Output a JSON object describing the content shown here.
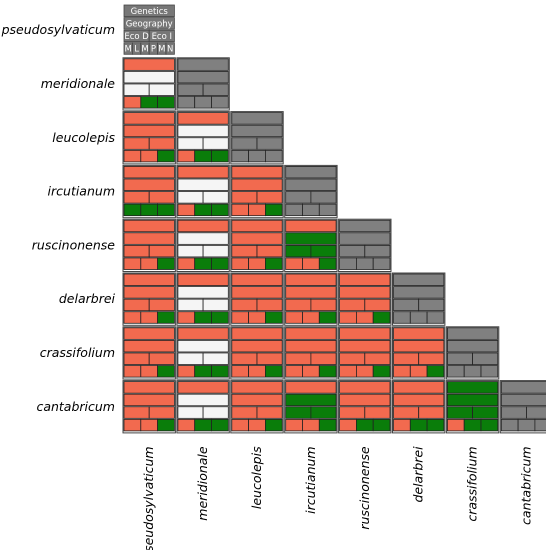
{
  "species": [
    "pseudosylvaticum",
    "meridionale",
    "leucolepis",
    "ircutianum",
    "ruscinonense",
    "delarbrei",
    "crassifolium",
    "cantabricum"
  ],
  "legend": {
    "row1": "Genetics",
    "row2": "Geography",
    "row3": [
      "Eco D",
      "Eco I"
    ],
    "row4": [
      "M",
      "L",
      "M",
      "P",
      "M",
      "N"
    ]
  },
  "colors": {
    "red": "#f26a4f",
    "white": "#f5f5f5",
    "green": "#0a7d0a",
    "gray": "#808080",
    "legend_gray": "#777777",
    "border": "#444444"
  },
  "cell_codes": {
    "1": [
      "R",
      "W",
      "W",
      "W",
      "R",
      "G",
      "G"
    ],
    "2": [
      "R",
      "R",
      "R",
      "R",
      "R",
      "R",
      "G"
    ],
    "3": [
      "R",
      "W",
      "W",
      "W",
      "R",
      "G",
      "G"
    ],
    "4": [
      "R",
      "R",
      "R",
      "R",
      "G",
      "G",
      "G"
    ],
    "5": [
      "R",
      "R",
      "R",
      "R",
      "R",
      "R",
      "G"
    ],
    "6": [
      "R",
      "W",
      "W",
      "W",
      "R",
      "G",
      "G"
    ],
    "7": [
      "R",
      "R",
      "R",
      "R",
      "R",
      "R",
      "G"
    ],
    "8": [
      "R",
      "R",
      "R",
      "R",
      "R",
      "R",
      "G"
    ],
    "9": [
      "R",
      "G",
      "G",
      "G",
      "R",
      "R",
      "G"
    ],
    "10": [
      "R",
      "R",
      "R",
      "R",
      "R",
      "R",
      "G"
    ],
    "11": [
      "R",
      "R",
      "R",
      "R",
      "R",
      "R",
      "G"
    ],
    "12": [
      "R",
      "R",
      "R",
      "R",
      "R",
      "R",
      "G"
    ],
    "13": [
      "R",
      "R",
      "R",
      "R",
      "R",
      "R",
      "G"
    ],
    "14": [
      "R",
      "R",
      "R",
      "R",
      "R",
      "R",
      "G"
    ],
    "15": [
      "R",
      "R",
      "R",
      "R",
      "R",
      "R",
      "G"
    ],
    "16": [
      "R",
      "R",
      "R",
      "R",
      "R",
      "R",
      "G"
    ],
    "17": [
      "R",
      "W",
      "W",
      "W",
      "R",
      "G",
      "G"
    ],
    "18": [
      "R",
      "R",
      "R",
      "R",
      "R",
      "R",
      "G"
    ],
    "19": [
      "R",
      "R",
      "R",
      "R",
      "R",
      "R",
      "G"
    ],
    "20": [
      "R",
      "R",
      "R",
      "R",
      "R",
      "R",
      "G"
    ],
    "21": [
      "R",
      "R",
      "R",
      "R",
      "R",
      "R",
      "G"
    ],
    "22": [
      "R",
      "R",
      "R",
      "R",
      "R",
      "R",
      "G"
    ],
    "23": [
      "R",
      "R",
      "R",
      "R",
      "R",
      "G",
      "G"
    ],
    "24": [
      "R",
      "R",
      "R",
      "R",
      "R",
      "G",
      "G"
    ],
    "25": [
      "R",
      "R",
      "R",
      "R",
      "R",
      "R",
      "G"
    ],
    "26": [
      "R",
      "R",
      "R",
      "R",
      "R",
      "R",
      "G"
    ],
    "27": [
      "R",
      "R",
      "R",
      "R",
      "R",
      "R",
      "G"
    ],
    "28": [
      "R",
      "R",
      "R",
      "R",
      "R",
      "R",
      "G"
    ],
    "29": [
      "R",
      "R",
      "R",
      "R",
      "R",
      "R",
      "G"
    ],
    "30": [
      "R",
      "R",
      "R",
      "R",
      "G",
      "G",
      "G"
    ],
    "31": [
      "R",
      "R",
      "R",
      "R",
      "R",
      "R",
      "G"
    ],
    "32": [
      "R",
      "R",
      "R",
      "R",
      "R",
      "R",
      "G"
    ],
    "33": [
      "R",
      "R",
      "R",
      "R",
      "R",
      "G",
      "G"
    ],
    "34": [
      "R",
      "G",
      "G",
      "G",
      "R",
      "R",
      "G"
    ],
    "35": [
      "G",
      "G",
      "G",
      "G",
      "R",
      "G",
      "G"
    ]
  },
  "matrix": [
    [],
    [
      "1"
    ],
    [
      "2",
      "3"
    ],
    [
      "4",
      "6",
      "5"
    ],
    [
      "7",
      "6",
      "8",
      "9"
    ],
    [
      "10",
      "17",
      "11",
      "12",
      "13"
    ],
    [
      "14",
      "6",
      "15",
      "16",
      "18",
      "19"
    ],
    [
      "20",
      "6",
      "21",
      "34",
      "23",
      "24",
      "35"
    ]
  ]
}
